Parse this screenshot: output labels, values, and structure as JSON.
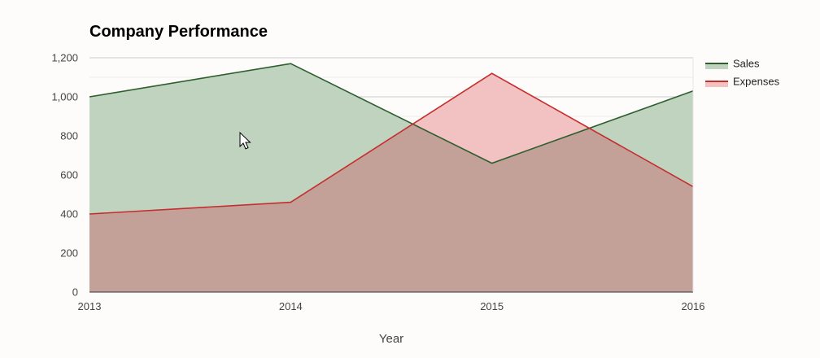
{
  "chart_data": {
    "type": "area",
    "title": "Company Performance",
    "xlabel": "Year",
    "ylabel": "",
    "categories": [
      "2013",
      "2014",
      "2015",
      "2016"
    ],
    "series": [
      {
        "name": "Sales",
        "values": [
          1000,
          1170,
          660,
          1030
        ],
        "color": "#2e5e2e",
        "fill": "#bfd3bf"
      },
      {
        "name": "Expenses",
        "values": [
          400,
          460,
          1120,
          540
        ],
        "color": "#c62d2d",
        "fill": "#f2c1c1"
      }
    ],
    "overlap_fill": "#c3a098",
    "ylim": [
      0,
      1200
    ],
    "yticks": [
      0,
      200,
      400,
      600,
      800,
      1000,
      1200
    ],
    "ytick_labels": [
      "0",
      "200",
      "400",
      "600",
      "800",
      "1,000",
      "1,200"
    ],
    "grid": true,
    "legend_position": "top-right"
  }
}
